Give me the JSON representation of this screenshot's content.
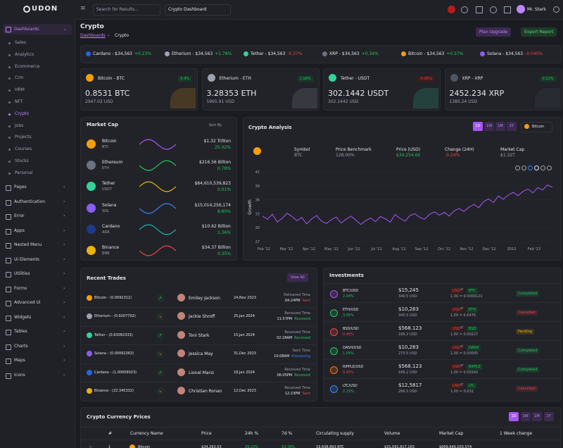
{
  "header": {
    "logo": "UDON",
    "search_placeholder": "Search for Results...",
    "dashboard_select": "Crypto Dashboard",
    "user_name": "Mr. Stark"
  },
  "sidebar": {
    "active": "Dashboards",
    "submenu": [
      "Sales",
      "Analytics",
      "Ecommerce",
      "Crm",
      "HRM",
      "NFT",
      "Crypto",
      "Jobs",
      "Projects",
      "Courses",
      "Stocks",
      "Personal"
    ],
    "active_sub": 6,
    "menu": [
      "Pages",
      "Authentication",
      "Error",
      "Apps",
      "Nested Menu",
      "Ui Elements",
      "Utilities",
      "Forms",
      "Advanced Ui",
      "Widgets",
      "Tables",
      "Charts",
      "Maps",
      "Icons"
    ]
  },
  "page": {
    "title": "Crypto",
    "breadcrumb": [
      "Dashboards",
      "Crypto"
    ],
    "buttons": [
      "Plan Upgrade",
      "Export Report"
    ]
  },
  "ticker": [
    {
      "label": "Cardano - $34,563",
      "change": "+0.23%",
      "color": "#2563eb"
    },
    {
      "label": "Etherium - $34,563",
      "change": "+1.78%",
      "color": "#9ca3af"
    },
    {
      "label": "Tether - $34,563",
      "change": "-0.27%",
      "color": "#34d399"
    },
    {
      "label": "XRP - $34,563",
      "change": "+0.34%",
      "color": "#6b7280"
    },
    {
      "label": "Bitcoin - $34,563",
      "change": "+0.57%",
      "color": "#f59e0b"
    },
    {
      "label": "Solana - $34,563",
      "change": "-0.045%",
      "color": "#8b5cf6"
    }
  ],
  "coin_cards": [
    {
      "name": "Bitcoin - BTC",
      "change": "0.4%",
      "amount": "0.8531 BTC",
      "usd": "2947.02 USD",
      "color": "#f59e0b"
    },
    {
      "name": "Etherium - ETH",
      "change": "1.18%",
      "amount": "3.28353 ETH",
      "usd": "5965.91 USD",
      "color": "#9ca3af"
    },
    {
      "name": "Tether - USDT",
      "change": "-0.05%",
      "amount": "302.1442 USDT",
      "usd": "302.1442 USD",
      "color": "#34d399"
    },
    {
      "name": "XRP - XRP",
      "change": "0.11%",
      "amount": "2452.234 XRP",
      "usd": "1385.24 USD",
      "color": "#4b5563"
    }
  ],
  "market_cap": {
    "title": "Market Cap",
    "sort": "Sort By",
    "rows": [
      {
        "name": "Bitcoin",
        "symbol": "BTC",
        "value": "$1.32 Trillion",
        "change": "25.02%",
        "color": "#a855f7",
        "icon": "#f59e0b"
      },
      {
        "name": "Ethereum",
        "symbol": "ETH",
        "value": "$216.56 Billion",
        "change": "0.78%",
        "color": "#22c55e",
        "icon": "#6b7280"
      },
      {
        "name": "Tether",
        "symbol": "USDT",
        "value": "$84,610,539,823",
        "change": "0.01%",
        "color": "#eab308",
        "icon": "#34d399"
      },
      {
        "name": "Solana",
        "symbol": "SOL",
        "value": "$15,014,256,174",
        "change": "8.80%",
        "color": "#3b82f6",
        "icon": "#8b5cf6"
      },
      {
        "name": "Cardano",
        "symbol": "ADA",
        "value": "$10.62 Billion",
        "change": "1.36%",
        "color": "#14b8a6",
        "icon": "#1e3a8a"
      },
      {
        "name": "Binance",
        "symbol": "BNB",
        "value": "$34.37 Billion",
        "change": "0.35%",
        "color": "#ef4444",
        "icon": "#eab308"
      }
    ]
  },
  "analysis": {
    "title": "Crypto Analysis",
    "ranges": [
      "1D",
      "1W",
      "1M",
      "1Y"
    ],
    "coin_select": "Bitcoin",
    "stats": [
      {
        "label": "Symbol",
        "value": "BTC"
      },
      {
        "label": "Price Benchmark",
        "value": "128.00%"
      },
      {
        "label": "Price (USD)",
        "value": "$34,254.60"
      },
      {
        "label": "Change (24H)",
        "value": "-0.24%"
      },
      {
        "label": "Market Cap",
        "value": "$1.32T"
      }
    ],
    "chart": {
      "type": "line",
      "y_label": "Growth",
      "color": "#a855f7",
      "ylim": [
        27,
        42
      ],
      "yticks": [
        27,
        30,
        33,
        36,
        39,
        42
      ],
      "xticks": [
        "Feb '12",
        "Mar '12",
        "Apr '12",
        "May '12",
        "Jun '12",
        "Jul '12",
        "Aug '12",
        "Sep '12",
        "Oct '12",
        "Nov '12",
        "Dec '12",
        "2013",
        "Feb '13"
      ],
      "values": [
        32.5,
        31.8,
        32.9,
        31.2,
        32.0,
        33.1,
        32.4,
        31.5,
        32.2,
        30.8,
        31.9,
        32.6,
        31.4,
        30.9,
        31.7,
        32.3,
        31.0,
        31.8,
        32.5,
        31.6,
        30.7,
        31.5,
        32.1,
        31.3,
        32.4,
        31.9,
        31.2,
        32.8,
        32.0,
        31.4,
        32.6,
        33.0,
        32.2,
        31.8,
        32.9,
        33.4,
        32.7,
        33.3,
        32.5,
        33.6,
        34.1,
        33.5,
        34.4,
        35.0,
        34.3,
        35.6,
        36.2,
        35.4,
        36.8,
        36.1,
        37.0,
        37.6,
        36.9,
        37.8,
        38.3,
        37.5,
        38.6,
        38.1,
        39.2,
        38.7
      ]
    }
  },
  "recent_trades": {
    "title": "Recent Trades",
    "button": "View All",
    "rows": [
      {
        "coin": "Bitcoin - (0.0092312)",
        "user": "Emiley Jackson",
        "date": "24,Nov 2023",
        "time_label": "Delivered Time",
        "time": "04:24PM",
        "status": "Sent",
        "color": "#f59e0b",
        "status_color": "#ef4444",
        "up": true
      },
      {
        "coin": "Etherium - (0.9207702)",
        "user": "Jackie Shroff",
        "date": "25,Jan 2024",
        "time_label": "Received Time",
        "time": "11:57PM",
        "status": "Received",
        "color": "#9ca3af",
        "status_color": "#22c55e",
        "up": false
      },
      {
        "coin": "Tether - (0.63092333)",
        "user": "Toni Stark",
        "date": "15,Jan 2024",
        "time_label": "Received Time",
        "time": "02:28AM",
        "status": "Received",
        "color": "#34d399",
        "status_color": "#22c55e",
        "up": true
      },
      {
        "coin": "Solana - (0.00092363)",
        "user": "Jessica May",
        "date": "31,Dec 2023",
        "time_label": "Sent Time",
        "time": "10:08AM",
        "status": "Processing",
        "color": "#8b5cf6",
        "status_color": "#3b82f6",
        "up": false
      },
      {
        "coin": "Cardano - (1.00009023)",
        "user": "Lionel Marsi",
        "date": "18,Jan 2024",
        "time_label": "Received Time",
        "time": "06:05PM",
        "status": "Received",
        "color": "#2563eb",
        "status_color": "#22c55e",
        "up": true
      },
      {
        "coin": "Binance - (22.345332)",
        "user": "Christian Ronan",
        "date": "12,Dec 2023",
        "time_label": "Received Time",
        "time": "12:23PM",
        "status": "Sent",
        "color": "#eab308",
        "status_color": "#ef4444",
        "up": false
      }
    ]
  },
  "investments": {
    "title": "Investments",
    "rows": [
      {
        "pair": "BTC/USD",
        "change": "2.04%",
        "price": "$15,245",
        "usd": "340.5 USD",
        "from": "USD",
        "to": "BTC",
        "rate": "1.00 = 0.0000121",
        "status": "Completed",
        "color": "#a855f7",
        "status_color": "#22c55e"
      },
      {
        "pair": "ETH/USD",
        "change": "3.05%",
        "price": "$10,283",
        "usd": "340.5 USD",
        "from": "USD",
        "to": "ETH",
        "rate": "1.00 = 0.0476",
        "status": "Cancelled",
        "color": "#22c55e",
        "status_color": "#ef4444"
      },
      {
        "pair": "BSD/USD",
        "change": "0.45%",
        "price": "$568.123",
        "usd": "166.2 USD",
        "from": "USD",
        "to": "BSD",
        "rate": "1.00 = 0.00227",
        "status": "Pending",
        "color": "#ef4444",
        "status_color": "#eab308"
      },
      {
        "pair": "DASH/USD",
        "change": "1.05%",
        "price": "$10,283",
        "usd": "273.5 USD",
        "from": "USD",
        "to": "DASH",
        "rate": "1.00 = 0.00005",
        "status": "Completed",
        "color": "#22c55e",
        "status_color": "#22c55e"
      },
      {
        "pair": "RIPPLE/USD",
        "change": "0.45%",
        "price": "$568.123",
        "usd": "166.2 USD",
        "from": "USD",
        "to": "RIPPLE",
        "rate": "1.00 = 0.00342",
        "status": "Completed",
        "color": "#f97316",
        "status_color": "#22c55e"
      },
      {
        "pair": "LTC/USD",
        "change": "2.15%",
        "price": "$12,5817",
        "usd": "266.5 USD",
        "from": "USD",
        "to": "LTC",
        "rate": "1.00 = 0.032",
        "status": "Cancelled",
        "color": "#3b82f6",
        "status_color": "#ef4444"
      }
    ],
    "change_colors": [
      "#22c55e",
      "#22c55e",
      "#ef4444",
      "#22c55e",
      "#ef4444",
      "#22c55e"
    ]
  },
  "prices": {
    "title": "Crypto Currency Prices",
    "ranges": [
      "1D",
      "1W",
      "1M",
      "1Y"
    ],
    "headers": [
      "#",
      "Currency Name",
      "Price",
      "24h %",
      "7d %",
      "Circulating supply",
      "Volume",
      "Market Cap",
      "1 Week change"
    ],
    "rows": [
      [
        "1",
        "Bitcoin",
        "$34,263.53",
        "29.23%",
        "10.78%",
        "19,638,893 BTC",
        "$31,091,817,163",
        "$669,649,033,574"
      ]
    ]
  }
}
